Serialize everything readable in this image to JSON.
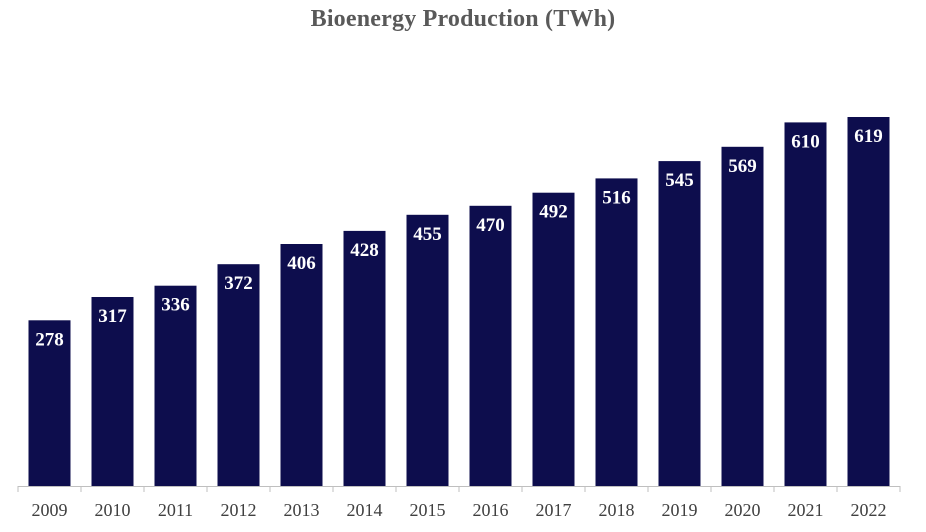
{
  "chart_data": {
    "type": "bar",
    "title": "Bioenergy Production (TWh)",
    "xlabel": "",
    "ylabel": "",
    "categories": [
      "2009",
      "2010",
      "2011",
      "2012",
      "2013",
      "2014",
      "2015",
      "2016",
      "2017",
      "2018",
      "2019",
      "2020",
      "2021",
      "2022"
    ],
    "values": [
      278,
      317,
      336,
      372,
      406,
      428,
      455,
      470,
      492,
      516,
      545,
      569,
      610,
      619
    ],
    "ylim": [
      0,
      650
    ],
    "grid": false,
    "legend": "none",
    "data_labels": "inside-top",
    "colors": {
      "bar": "#0d0d4d",
      "bar_label": "#ffffff",
      "axis": "#bfbfbf",
      "tick_label": "#404040",
      "title": "#595959"
    }
  }
}
